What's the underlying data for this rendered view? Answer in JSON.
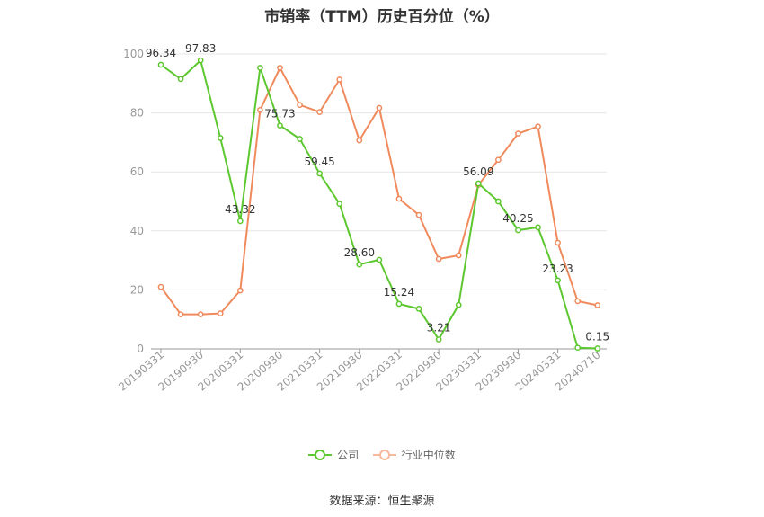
{
  "chart_data": {
    "type": "line",
    "title": "市销率（TTM）历史百分位（%）",
    "source": "数据来源：恒生聚源",
    "ylim": [
      0,
      100
    ],
    "yticks": [
      "0",
      "20",
      "40",
      "60",
      "80",
      "100"
    ],
    "grid": true,
    "legend_position": "bottom",
    "tick_labels": [
      "20190331",
      "20190930",
      "20200331",
      "20200930",
      "20210331",
      "20210930",
      "20220331",
      "20220930",
      "20230331",
      "20230930",
      "20240331",
      "20240710"
    ],
    "x": [
      "20190331",
      "20190630",
      "20190930",
      "20191231",
      "20200331",
      "20200630",
      "20200930",
      "20201231",
      "20210331",
      "20210630",
      "20210930",
      "20211231",
      "20220331",
      "20220630",
      "20220930",
      "20221231",
      "20230331",
      "20230630",
      "20230930",
      "20231231",
      "20240331",
      "20240630",
      "20240710"
    ],
    "series": [
      {
        "name": "公司",
        "color": "#5cc72f",
        "values": [
          96.34,
          91.5,
          97.83,
          71.5,
          43.32,
          95.3,
          75.73,
          71.2,
          59.45,
          49.2,
          28.6,
          30.2,
          15.24,
          13.6,
          3.21,
          14.9,
          56.09,
          50.0,
          40.25,
          41.2,
          23.23,
          0.4,
          0.15
        ]
      },
      {
        "name": "行业中位数",
        "color": "#f08a5d",
        "values": [
          21.0,
          11.7,
          11.7,
          12.0,
          19.8,
          81.0,
          95.3,
          82.7,
          80.3,
          91.3,
          70.7,
          81.7,
          50.9,
          45.4,
          30.5,
          31.7,
          55.6,
          64.1,
          73.0,
          75.4,
          36.0,
          16.2,
          14.8
        ]
      }
    ],
    "data_labels": [
      {
        "series": 0,
        "index": 0,
        "text": "96.34"
      },
      {
        "series": 0,
        "index": 2,
        "text": "97.83"
      },
      {
        "series": 0,
        "index": 4,
        "text": "43.32"
      },
      {
        "series": 0,
        "index": 6,
        "text": "75.73"
      },
      {
        "series": 0,
        "index": 8,
        "text": "59.45"
      },
      {
        "series": 0,
        "index": 10,
        "text": "28.60"
      },
      {
        "series": 0,
        "index": 12,
        "text": "15.24"
      },
      {
        "series": 0,
        "index": 14,
        "text": "3.21"
      },
      {
        "series": 0,
        "index": 16,
        "text": "56.09"
      },
      {
        "series": 0,
        "index": 18,
        "text": "40.25"
      },
      {
        "series": 0,
        "index": 20,
        "text": "23.23"
      },
      {
        "series": 0,
        "index": 22,
        "text": "0.15"
      }
    ]
  }
}
